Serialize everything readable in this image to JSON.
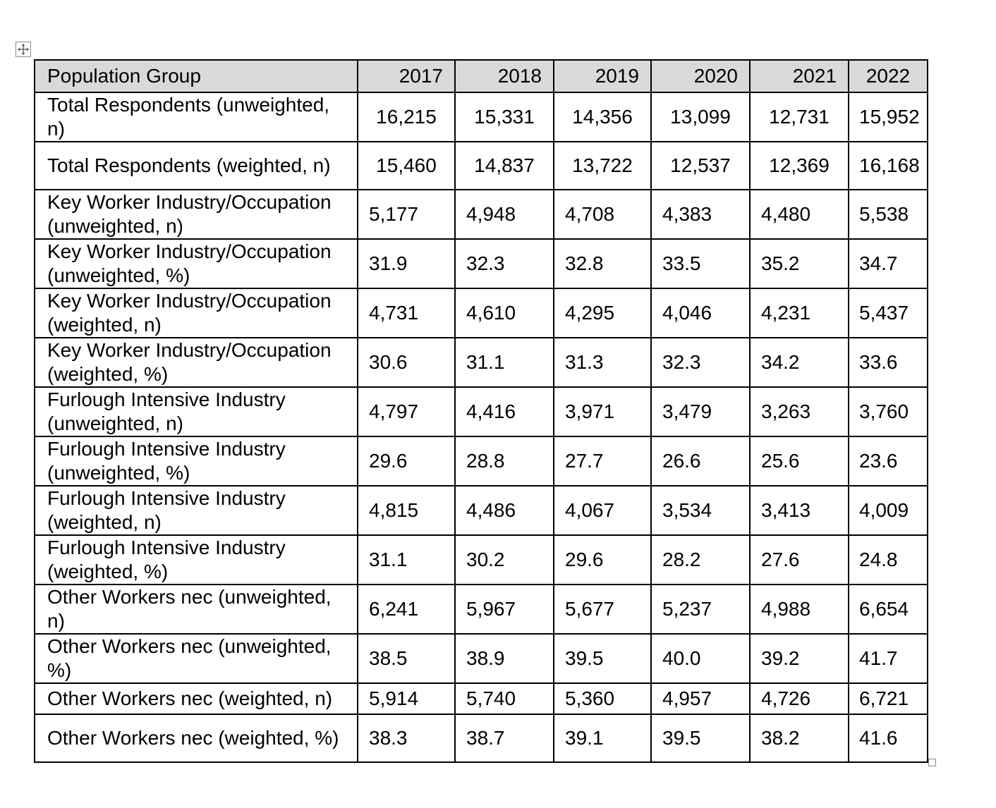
{
  "table": {
    "header": {
      "group_label": "Population Group",
      "years": [
        "2017",
        "2018",
        "2019",
        "2020",
        "2021",
        "2022"
      ]
    },
    "rows": [
      {
        "label": "Total Respondents (unweighted, n)",
        "values": [
          "16,215",
          "15,331",
          "14,356",
          "13,099",
          "12,731",
          "15,952"
        ]
      },
      {
        "label": "Total Respondents (weighted, n)",
        "values": [
          "15,460",
          "14,837",
          "13,722",
          "12,537",
          "12,369",
          "16,168"
        ]
      },
      {
        "label": "Key Worker Industry/Occupation (unweighted, n)",
        "values": [
          "5,177",
          "4,948",
          "4,708",
          "4,383",
          "4,480",
          "5,538"
        ]
      },
      {
        "label": "Key Worker Industry/Occupation (unweighted, %)",
        "values": [
          "31.9",
          "32.3",
          "32.8",
          "33.5",
          "35.2",
          "34.7"
        ]
      },
      {
        "label": "Key Worker Industry/Occupation (weighted, n)",
        "values": [
          "4,731",
          "4,610",
          "4,295",
          "4,046",
          "4,231",
          "5,437"
        ]
      },
      {
        "label": "Key Worker Industry/Occupation (weighted, %)",
        "values": [
          "30.6",
          "31.1",
          "31.3",
          "32.3",
          "34.2",
          "33.6"
        ]
      },
      {
        "label": "Furlough Intensive Industry (unweighted, n)",
        "values": [
          "4,797",
          "4,416",
          "3,971",
          "3,479",
          "3,263",
          "3,760"
        ]
      },
      {
        "label": "Furlough Intensive Industry (unweighted, %)",
        "values": [
          "29.6",
          "28.8",
          "27.7",
          "26.6",
          "25.6",
          "23.6"
        ]
      },
      {
        "label": "Furlough Intensive Industry (weighted, n)",
        "values": [
          "4,815",
          "4,486",
          "4,067",
          "3,534",
          "3,413",
          "4,009"
        ]
      },
      {
        "label": "Furlough Intensive Industry (weighted, %)",
        "values": [
          "31.1",
          "30.2",
          "29.6",
          "28.2",
          "27.6",
          "24.8"
        ]
      },
      {
        "label": "Other Workers nec (unweighted, n)",
        "values": [
          "6,241",
          "5,967",
          "5,677",
          "5,237",
          "4,988",
          "6,654"
        ]
      },
      {
        "label": "Other Workers nec (unweighted, %)",
        "values": [
          "38.5",
          "38.9",
          "39.5",
          "40.0",
          "39.2",
          "41.7"
        ]
      },
      {
        "label": "Other Workers nec (weighted, n)",
        "values": [
          "5,914",
          "5,740",
          "5,360",
          "4,957",
          "4,726",
          "6,721"
        ]
      },
      {
        "label": "Other Workers nec (weighted, %)",
        "values": [
          "38.3",
          "38.7",
          "39.1",
          "39.5",
          "38.2",
          "41.6"
        ]
      }
    ]
  },
  "icons": {
    "move_handle": "four-way-arrow-icon",
    "resize_handle": "resize-square-icon"
  }
}
